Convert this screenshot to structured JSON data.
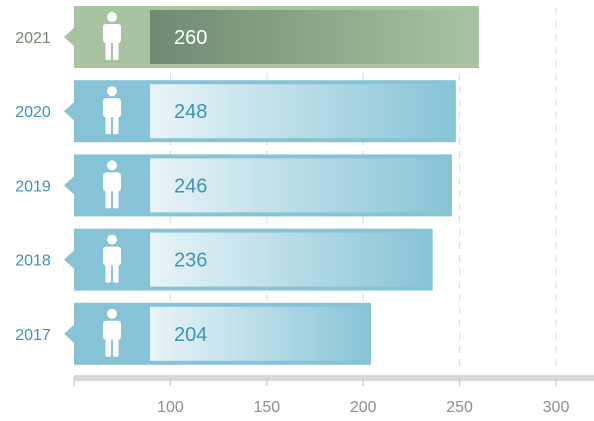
{
  "chart_data": {
    "type": "bar",
    "orientation": "horizontal",
    "categories": [
      "2021",
      "2020",
      "2019",
      "2018",
      "2017"
    ],
    "values": [
      260,
      248,
      246,
      236,
      204
    ],
    "highlight_category": "2021",
    "x_ticks": [
      100,
      150,
      200,
      250,
      300
    ],
    "xlim": [
      50,
      310
    ],
    "grid": "vertical dashed",
    "title": "",
    "xlabel": "",
    "ylabel": "",
    "bar_icon": "person-icon",
    "colors": {
      "highlight_bar": "#a8c3a0",
      "highlight_fill_dark": "#6e8a72",
      "highlight_label": "#6f8a6c",
      "bar": "#87c3d6",
      "bar_fill_light": "#e8f4f8",
      "label": "#3d93b5",
      "value_text": "#3d93b5",
      "highlight_value_text": "#ffffff",
      "axis": "#d8d8d8",
      "grid": "#dedede",
      "tick_text": "#8a8f94"
    }
  }
}
